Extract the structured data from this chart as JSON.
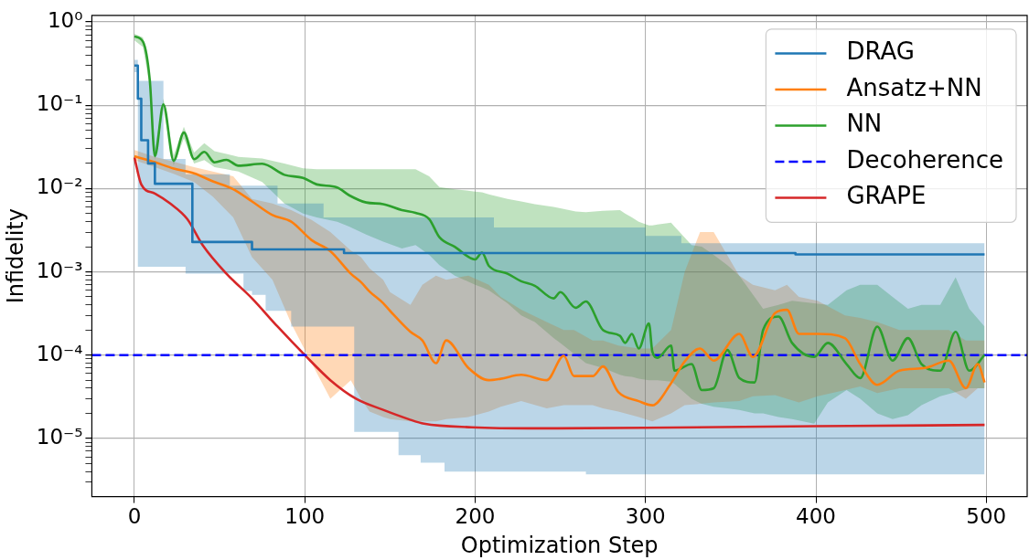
{
  "chart_data": {
    "type": "line",
    "xlabel": "Optimization Step",
    "ylabel": "Infidelity",
    "log": "y",
    "grid": true,
    "legend": "top right",
    "xlim": [
      -25,
      524
    ],
    "xticks": [
      0,
      100,
      200,
      300,
      400,
      500
    ],
    "ylim": [
      2e-06,
      1.2
    ],
    "yticks": [
      {
        "value": 1,
        "label": "10⁰"
      },
      {
        "value": 0.1,
        "label": "10⁻¹"
      },
      {
        "value": 0.01,
        "label": "10⁻²"
      },
      {
        "value": 0.001,
        "label": "10⁻³"
      },
      {
        "value": 0.0001,
        "label": "10⁻⁴"
      },
      {
        "value": 1e-05,
        "label": "10⁻⁵"
      },
      {
        "value": 0.9,
        "label": null
      },
      {
        "value": 0.8,
        "label": null
      },
      {
        "value": 0.7,
        "label": null
      },
      {
        "value": 0.6,
        "label": null
      },
      {
        "value": 0.5,
        "label": null
      },
      {
        "value": 0.4,
        "label": null
      },
      {
        "value": 0.3,
        "label": null
      },
      {
        "value": 0.2,
        "label": null
      },
      {
        "value": 0.09,
        "label": null
      },
      {
        "value": 0.08,
        "label": null
      },
      {
        "value": 0.07,
        "label": null
      },
      {
        "value": 0.06,
        "label": null
      },
      {
        "value": 0.05,
        "label": null
      },
      {
        "value": 0.04,
        "label": null
      },
      {
        "value": 0.03,
        "label": null
      },
      {
        "value": 0.02,
        "label": null
      },
      {
        "value": 0.009,
        "label": null
      },
      {
        "value": 0.008,
        "label": null
      },
      {
        "value": 0.007,
        "label": null
      },
      {
        "value": 0.006,
        "label": null
      },
      {
        "value": 0.005,
        "label": null
      },
      {
        "value": 0.004,
        "label": null
      },
      {
        "value": 0.003,
        "label": null
      },
      {
        "value": 0.002,
        "label": null
      },
      {
        "value": 0.0009,
        "label": null
      },
      {
        "value": 0.0008,
        "label": null
      },
      {
        "value": 0.0007,
        "label": null
      },
      {
        "value": 0.0006,
        "label": null
      },
      {
        "value": 0.0005,
        "label": null
      },
      {
        "value": 0.0004,
        "label": null
      },
      {
        "value": 0.0003,
        "label": null
      },
      {
        "value": 0.0002,
        "label": null
      },
      {
        "value": 9e-05,
        "label": null
      },
      {
        "value": 8e-05,
        "label": null
      },
      {
        "value": 7e-05,
        "label": null
      },
      {
        "value": 6e-05,
        "label": null
      },
      {
        "value": 5e-05,
        "label": null
      },
      {
        "value": 4e-05,
        "label": null
      },
      {
        "value": 3e-05,
        "label": null
      },
      {
        "value": 2e-05,
        "label": null
      },
      {
        "value": 9e-06,
        "label": null
      },
      {
        "value": 8e-06,
        "label": null
      },
      {
        "value": 7e-06,
        "label": null
      },
      {
        "value": 6e-06,
        "label": null
      },
      {
        "value": 5e-06,
        "label": null
      },
      {
        "value": 4e-06,
        "label": null
      },
      {
        "value": 3e-06,
        "label": null
      }
    ],
    "series": [
      {
        "name": "DRAG",
        "type": "step",
        "color": "#1f77b4",
        "x": [
          0,
          2,
          4,
          8,
          12,
          17,
          30,
          34,
          56,
          64,
          69,
          77,
          84,
          92,
          111,
          123,
          129,
          155,
          168,
          182,
          211,
          265,
          300,
          321,
          388,
          499
        ],
        "values": [
          0.3,
          0.12,
          0.038,
          0.02,
          0.0114,
          0.0114,
          0.0114,
          0.00228,
          0.00228,
          0.00228,
          0.00186,
          0.00186,
          0.00186,
          0.00186,
          0.00186,
          0.00168,
          0.00168,
          0.00168,
          0.00168,
          0.00168,
          0.00168,
          0.00168,
          0.00168,
          0.00168,
          0.00162,
          0.00162
        ],
        "lower": [
          0.25,
          0.00115,
          0.00115,
          0.00115,
          0.00115,
          0.00115,
          0.00095,
          0.00095,
          0.00095,
          0.00059,
          0.00053,
          0.00034,
          0.00034,
          0.00022,
          0.00022,
          0.00022,
          1.2e-05,
          6.3e-06,
          5.1e-06,
          4e-06,
          4e-06,
          3.7e-06,
          3.7e-06,
          3.7e-06,
          3.7e-06,
          3.7e-06
        ],
        "upper": [
          0.35,
          0.196,
          0.196,
          0.196,
          0.196,
          0.0226,
          0.0148,
          0.0148,
          0.0108,
          0.0108,
          0.0108,
          0.0108,
          0.0066,
          0.0066,
          0.0045,
          0.0045,
          0.0045,
          0.0045,
          0.0045,
          0.0045,
          0.0034,
          0.0034,
          0.0027,
          0.0022,
          0.0022,
          0.0022
        ]
      },
      {
        "name": "Ansatz+NN",
        "color": "#ff7f0e",
        "x": [
          0,
          12,
          23,
          35,
          46,
          58,
          69,
          81,
          92,
          104,
          115,
          127,
          133,
          138,
          146,
          150,
          162,
          169,
          177,
          183,
          196,
          208,
          215,
          227,
          242,
          252,
          258,
          269,
          275,
          284,
          296,
          304,
          315,
          323,
          332,
          340,
          355,
          363,
          376,
          383,
          390,
          401,
          417,
          426,
          436,
          449,
          464,
          478,
          488,
          495,
          499
        ],
        "values": [
          0.0244,
          0.0207,
          0.0174,
          0.0152,
          0.0122,
          0.0098,
          0.007,
          0.0048,
          0.004,
          0.0024,
          0.00177,
          0.00095,
          0.00075,
          0.00058,
          0.00042,
          0.00034,
          0.00019,
          0.00015,
          8e-05,
          0.00015,
          7e-05,
          5e-05,
          5.2e-05,
          5.8e-05,
          5e-05,
          9.8e-05,
          5.6e-05,
          5.6e-05,
          7.3e-05,
          3.6e-05,
          2.8e-05,
          2.5e-05,
          4.6e-05,
          8.4e-05,
          0.00012,
          8.6e-05,
          0.00018,
          9.5e-05,
          0.00032,
          0.00035,
          0.00018,
          0.00018,
          0.00016,
          7.8e-05,
          4.4e-05,
          6.5e-05,
          7e-05,
          8.6e-05,
          4e-05,
          7.8e-05,
          4.7e-05
        ],
        "lower": [
          0.022,
          0.018,
          0.015,
          0.012,
          0.008,
          0.0045,
          0.0015,
          0.0008,
          0.00024,
          8e-05,
          3e-05,
          5e-05,
          3e-05,
          2.1e-05,
          1.8e-05,
          1.7e-05,
          1.6e-05,
          1.6e-05,
          1.6e-05,
          1.7e-05,
          1.8e-05,
          2.1e-05,
          2.4e-05,
          2.8e-05,
          2.3e-05,
          2.5e-05,
          2.5e-05,
          2.5e-05,
          2.3e-05,
          2.1e-05,
          1.8e-05,
          1.6e-05,
          2e-05,
          2.5e-05,
          2.6e-05,
          2.7e-05,
          2.8e-05,
          3.2e-05,
          3.3e-05,
          3e-05,
          2.7e-05,
          3.2e-05,
          3.8e-05,
          4.2e-05,
          3.5e-05,
          4e-05,
          4e-05,
          4e-05,
          3e-05,
          4e-05,
          4e-05
        ],
        "upper": [
          0.029,
          0.024,
          0.021,
          0.018,
          0.016,
          0.014,
          0.0075,
          0.0066,
          0.0055,
          0.0042,
          0.003,
          0.0018,
          0.0015,
          0.0011,
          0.0008,
          0.00057,
          0.0004,
          0.0007,
          0.0009,
          0.0008,
          0.0009,
          0.0007,
          0.0005,
          0.00035,
          0.00025,
          0.0002,
          0.0002,
          0.00015,
          0.00015,
          0.00013,
          0.00012,
          0.00012,
          0.0002,
          0.001,
          0.003,
          0.003,
          0.0009,
          0.0007,
          0.0006,
          0.0007,
          0.0005,
          0.00045,
          0.0003,
          0.00028,
          0.00025,
          0.0002,
          0.0002,
          0.0002,
          0.00015,
          0.00015,
          0.00015
        ]
      },
      {
        "name": "NN",
        "color": "#2ca02c",
        "x": [
          0,
          5,
          9,
          12,
          17,
          23,
          29,
          35,
          41,
          47,
          54,
          61,
          75,
          88,
          99,
          107,
          119,
          126,
          136,
          146,
          157,
          165,
          173,
          179,
          188,
          200,
          204,
          208,
          219,
          227,
          235,
          246,
          250,
          259,
          265,
          275,
          285,
          288,
          292,
          296,
          302,
          304,
          307,
          315,
          317,
          327,
          333,
          340,
          348,
          355,
          364,
          369,
          378,
          386,
          399,
          407,
          418,
          426,
          436,
          445,
          454,
          462,
          473,
          482,
          490,
          499
        ],
        "values": [
          0.67,
          0.58,
          0.2,
          0.0245,
          0.102,
          0.0216,
          0.047,
          0.0225,
          0.0275,
          0.0206,
          0.0221,
          0.0188,
          0.0198,
          0.0146,
          0.0134,
          0.0112,
          0.0103,
          0.0083,
          0.0068,
          0.0065,
          0.0055,
          0.0051,
          0.0043,
          0.0026,
          0.002,
          0.00141,
          0.0017,
          0.00118,
          0.00095,
          0.00077,
          0.00068,
          0.00048,
          0.00057,
          0.00037,
          0.00044,
          0.0002,
          0.00017,
          0.00014,
          0.00018,
          0.00012,
          0.00024,
          0.00011,
          9.3e-05,
          0.00013,
          6.5e-05,
          7.8e-05,
          3.8e-05,
          4e-05,
          0.000115,
          5.3e-05,
          4.7e-05,
          0.0002,
          0.00029,
          0.00014,
          9.5e-05,
          0.00014,
          7.8e-05,
          5.3e-05,
          0.00022,
          8.6e-05,
          0.00016,
          7.8e-05,
          6.5e-05,
          0.00019,
          6.5e-05,
          0.0001
        ],
        "lower": [
          0.6,
          0.5,
          0.17,
          0.022,
          0.09,
          0.019,
          0.04,
          0.02,
          0.022,
          0.018,
          0.017,
          0.016,
          0.012,
          0.0066,
          0.005,
          0.0045,
          0.004,
          0.0035,
          0.0028,
          0.0023,
          0.0019,
          0.0021,
          0.0016,
          0.0012,
          0.0009,
          0.0007,
          0.00065,
          0.0006,
          0.00042,
          0.0003,
          0.00025,
          0.00016,
          0.00014,
          0.0001,
          8e-05,
          7e-05,
          5.8e-05,
          5.6e-05,
          5.5e-05,
          5.2e-05,
          5e-05,
          5e-05,
          5e-05,
          4.8e-05,
          4.5e-05,
          3e-05,
          2.6e-05,
          2.4e-05,
          2.3e-05,
          2.2e-05,
          2e-05,
          2e-05,
          1.8e-05,
          1.7e-05,
          1.5e-05,
          2.7e-05,
          3.8e-05,
          3e-05,
          2e-05,
          1.7e-05,
          1.9e-05,
          2.5e-05,
          3.2e-05,
          3.6e-05,
          4e-05,
          4e-05
        ],
        "upper": [
          0.72,
          0.65,
          0.23,
          0.03,
          0.12,
          0.025,
          0.055,
          0.027,
          0.035,
          0.028,
          0.026,
          0.024,
          0.023,
          0.02,
          0.0175,
          0.017,
          0.017,
          0.017,
          0.017,
          0.017,
          0.017,
          0.017,
          0.014,
          0.0104,
          0.0098,
          0.0092,
          0.009,
          0.0085,
          0.0075,
          0.007,
          0.0065,
          0.006,
          0.0058,
          0.0053,
          0.0052,
          0.0054,
          0.0055,
          0.005,
          0.0045,
          0.004,
          0.0036,
          0.0036,
          0.0037,
          0.0039,
          0.0035,
          0.0021,
          0.002,
          0.0016,
          0.0012,
          0.0009,
          0.0005,
          0.00036,
          0.0004,
          0.00045,
          0.00042,
          0.0004,
          0.0006,
          0.0007,
          0.0007,
          0.0005,
          0.00036,
          0.0004,
          0.0004,
          0.00086,
          0.00036,
          0.00022
        ]
      },
      {
        "name": "Decoherence",
        "color": "#0000ff",
        "line_style": "dashed",
        "x": [
          -25,
          524
        ],
        "values": [
          0.0001,
          0.0001
        ]
      },
      {
        "name": "GRAPE",
        "color": "#d62728",
        "x": [
          0,
          4,
          12,
          21,
          31,
          40,
          54,
          69,
          84,
          100,
          115,
          130,
          146,
          161,
          170,
          198,
          237,
          300,
          400,
          499
        ],
        "values": [
          0.0236,
          0.0112,
          0.0087,
          0.0066,
          0.0043,
          0.0021,
          0.00095,
          0.00048,
          0.00022,
          0.0001,
          5e-05,
          3e-05,
          2.2e-05,
          1.7e-05,
          1.5e-05,
          1.36e-05,
          1.32e-05,
          1.34e-05,
          1.4e-05,
          1.45e-05
        ]
      }
    ]
  }
}
